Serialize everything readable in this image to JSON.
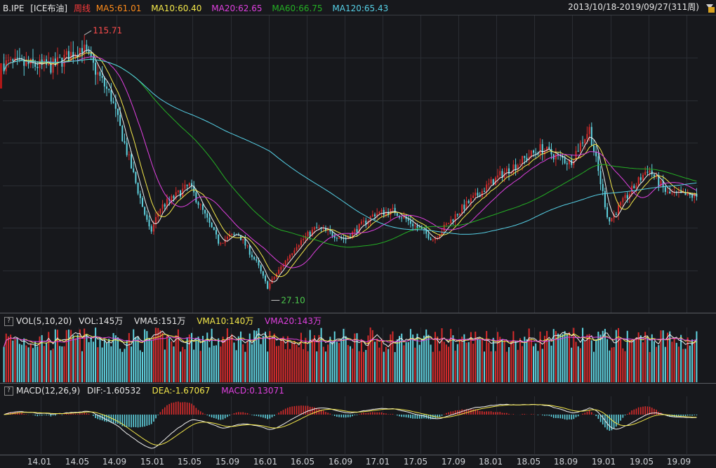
{
  "header": {
    "symbol": "B.IPE",
    "name": "[ICE布油]",
    "period": "周线",
    "ma5": "MA5:61.01",
    "ma10": "MA10:60.40",
    "ma20": "MA20:62.65",
    "ma60": "MA60:66.75",
    "ma120": "MA120:65.43",
    "range": "2013/10/18-2019/09/27(311周)"
  },
  "colors": {
    "background": "#17181c",
    "grid": "#2a2d33",
    "up": "#d62b2b",
    "down": "#5fd3e0",
    "ma5": "#f0f0f0",
    "ma10": "#f4e84a",
    "ma20": "#e040e0",
    "ma60": "#24b024",
    "ma120": "#56d0e6",
    "period_label": "#ff3b3b",
    "ma5_label": "#ff8c1a"
  },
  "vol_header": {
    "name": "VOL(5,10,20)",
    "vol": "VOL:145万",
    "vma5": "VMA5:151万",
    "vma10": "VMA10:140万",
    "vma20": "VMA20:143万"
  },
  "macd_header": {
    "name": "MACD(12,26,9)",
    "dif": "DIF:-1.60532",
    "dea": "DEA:-1.67067",
    "macd": "MACD:0.13071"
  },
  "chart_data": {
    "type": "candlestick",
    "x_ticks": [
      "14.01",
      "14.05",
      "14.09",
      "15.01",
      "15.05",
      "15.09",
      "16.01",
      "16.05",
      "16.09",
      "17.01",
      "17.05",
      "17.09",
      "18.01",
      "18.05",
      "18.09",
      "19.01",
      "19.05",
      "19.09"
    ],
    "annotations": [
      {
        "label": "115.71",
        "kind": "high"
      },
      {
        "label": "27.10",
        "kind": "low"
      }
    ],
    "price_anchors": [
      {
        "date": "2013.10",
        "close": 108
      },
      {
        "date": "2014.03",
        "close": 107
      },
      {
        "date": "2014.06",
        "close": 114
      },
      {
        "date": "2014.09",
        "close": 96
      },
      {
        "date": "2014.12",
        "close": 60
      },
      {
        "date": "2015.01",
        "close": 48
      },
      {
        "date": "2015.02",
        "close": 57
      },
      {
        "date": "2015.05",
        "close": 65
      },
      {
        "date": "2015.08",
        "close": 45
      },
      {
        "date": "2015.10",
        "close": 48
      },
      {
        "date": "2015.12",
        "close": 37
      },
      {
        "date": "2016.01",
        "close": 29
      },
      {
        "date": "2016.04",
        "close": 44
      },
      {
        "date": "2016.06",
        "close": 50
      },
      {
        "date": "2016.09",
        "close": 46
      },
      {
        "date": "2016.12",
        "close": 55
      },
      {
        "date": "2017.02",
        "close": 56
      },
      {
        "date": "2017.06",
        "close": 46
      },
      {
        "date": "2017.09",
        "close": 57
      },
      {
        "date": "2018.01",
        "close": 69
      },
      {
        "date": "2018.05",
        "close": 78
      },
      {
        "date": "2018.08",
        "close": 73
      },
      {
        "date": "2018.10",
        "close": 85
      },
      {
        "date": "2018.12",
        "close": 52
      },
      {
        "date": "2019.01",
        "close": 57
      },
      {
        "date": "2019.04",
        "close": 71
      },
      {
        "date": "2019.06",
        "close": 62
      },
      {
        "date": "2019.09",
        "close": 61
      }
    ],
    "price_range": [
      20,
      125
    ],
    "series": [
      {
        "name": "MA5",
        "period": 5
      },
      {
        "name": "MA10",
        "period": 10
      },
      {
        "name": "MA20",
        "period": 20
      },
      {
        "name": "MA60",
        "period": 60
      },
      {
        "name": "MA120",
        "period": 120
      }
    ],
    "volume_series": [
      "VMA5",
      "VMA10",
      "VMA20"
    ],
    "macd_series": [
      "DIF",
      "DEA",
      "MACD"
    ],
    "grid": true
  }
}
